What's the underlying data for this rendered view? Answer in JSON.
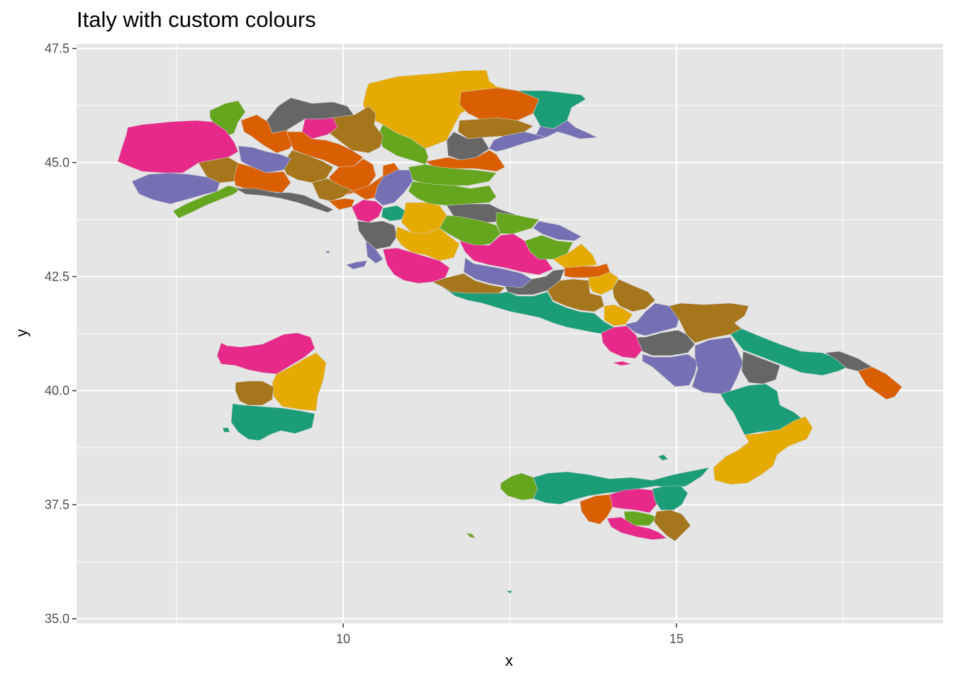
{
  "title": "Italy with custom colours",
  "chart_data": {
    "type": "map",
    "title": "Italy with custom colours",
    "xlabel": "x",
    "ylabel": "y",
    "xlim": [
      6.0,
      19.0
    ],
    "ylim": [
      34.9,
      47.6
    ],
    "x_ticks": [
      10,
      15
    ],
    "x_tick_labels": [
      "10",
      "15"
    ],
    "y_ticks": [
      35.0,
      37.5,
      40.0,
      42.5,
      45.0,
      47.5
    ],
    "y_tick_labels": [
      "35.0",
      "37.5",
      "40.0",
      "42.5",
      "45.0",
      "47.5"
    ],
    "grid": true,
    "panel_background": "#e5e5e5",
    "grid_color": "#ffffff",
    "palette": {
      "green": "#1b9e77",
      "orange": "#d95f02",
      "purple": "#7570b3",
      "pink": "#e7298a",
      "lime": "#66a61e",
      "gold": "#e6ab02",
      "brown": "#a6761d",
      "grey": "#666666"
    }
  }
}
